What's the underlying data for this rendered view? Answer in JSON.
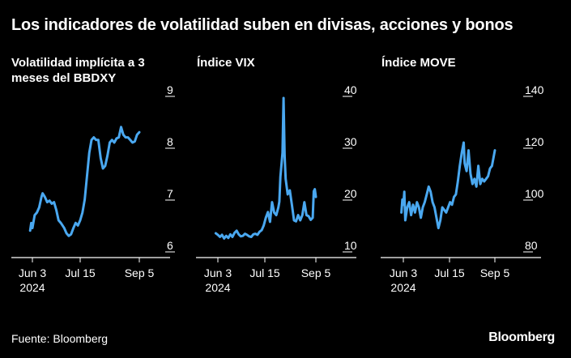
{
  "title": "Los indicadores de volatilidad suben en divisas, acciones y bonos",
  "source": "Fuente: Bloomberg",
  "brand": "Bloomberg",
  "colors": {
    "background": "#000000",
    "line": "#4aa8f0",
    "text": "#ffffff",
    "axis": "#ffffff"
  },
  "chart_data": [
    {
      "type": "line",
      "title": "Volatilidad implícita a 3 meses del BBDXY",
      "x_ticks": [
        "Jun 3\n2024",
        "Jul 15",
        "Sep 5"
      ],
      "y_ticks": [
        6,
        7,
        8,
        9
      ],
      "ylim": [
        5.75,
        9.05
      ],
      "series": [
        {
          "values": [
            [
              "2024-06-01",
              6.3
            ],
            [
              "2024-06-02",
              6.45
            ],
            [
              "2024-06-03",
              6.35
            ],
            [
              "2024-06-05",
              6.6
            ],
            [
              "2024-06-07",
              6.65
            ],
            [
              "2024-06-09",
              6.75
            ],
            [
              "2024-06-11",
              6.95
            ],
            [
              "2024-06-12",
              7.02
            ],
            [
              "2024-06-14",
              6.95
            ],
            [
              "2024-06-16",
              6.85
            ],
            [
              "2024-06-18",
              6.88
            ],
            [
              "2024-06-20",
              6.82
            ],
            [
              "2024-06-22",
              6.85
            ],
            [
              "2024-06-24",
              6.7
            ],
            [
              "2024-06-26",
              6.5
            ],
            [
              "2024-06-28",
              6.45
            ],
            [
              "2024-07-01",
              6.35
            ],
            [
              "2024-07-03",
              6.25
            ],
            [
              "2024-07-05",
              6.2
            ],
            [
              "2024-07-07",
              6.23
            ],
            [
              "2024-07-09",
              6.35
            ],
            [
              "2024-07-11",
              6.45
            ],
            [
              "2024-07-13",
              6.4
            ],
            [
              "2024-07-15",
              6.5
            ],
            [
              "2024-07-17",
              6.65
            ],
            [
              "2024-07-19",
              6.9
            ],
            [
              "2024-07-21",
              7.35
            ],
            [
              "2024-07-23",
              7.8
            ],
            [
              "2024-07-25",
              8.05
            ],
            [
              "2024-07-27",
              8.1
            ],
            [
              "2024-07-29",
              8.05
            ],
            [
              "2024-07-31",
              8.05
            ],
            [
              "2024-08-02",
              7.7
            ],
            [
              "2024-08-04",
              7.5
            ],
            [
              "2024-08-06",
              7.55
            ],
            [
              "2024-08-08",
              7.75
            ],
            [
              "2024-08-10",
              8.0
            ],
            [
              "2024-08-12",
              8.05
            ],
            [
              "2024-08-14",
              8.0
            ],
            [
              "2024-08-16",
              8.08
            ],
            [
              "2024-08-18",
              8.1
            ],
            [
              "2024-08-20",
              8.3
            ],
            [
              "2024-08-22",
              8.15
            ],
            [
              "2024-08-24",
              8.1
            ],
            [
              "2024-08-26",
              8.1
            ],
            [
              "2024-08-28",
              8.05
            ],
            [
              "2024-08-30",
              8.0
            ],
            [
              "2024-09-01",
              8.02
            ],
            [
              "2024-09-03",
              8.15
            ],
            [
              "2024-09-05",
              8.2
            ]
          ]
        }
      ]
    },
    {
      "type": "line",
      "title": "Índice VIX",
      "x_ticks": [
        "Jun 3\n2024",
        "Jul 15",
        "Sep 5"
      ],
      "y_ticks": [
        10,
        20,
        30,
        40
      ],
      "ylim": [
        9.5,
        41
      ],
      "series": [
        {
          "values": [
            [
              "2024-06-01",
              12.5
            ],
            [
              "2024-06-03",
              12.2
            ],
            [
              "2024-06-05",
              11.8
            ],
            [
              "2024-06-07",
              12.2
            ],
            [
              "2024-06-09",
              11.5
            ],
            [
              "2024-06-11",
              12.0
            ],
            [
              "2024-06-13",
              11.6
            ],
            [
              "2024-06-15",
              12.3
            ],
            [
              "2024-06-17",
              11.8
            ],
            [
              "2024-06-19",
              12.6
            ],
            [
              "2024-06-21",
              13.0
            ],
            [
              "2024-06-23",
              12.3
            ],
            [
              "2024-06-25",
              11.9
            ],
            [
              "2024-06-27",
              12.0
            ],
            [
              "2024-06-29",
              12.4
            ],
            [
              "2024-07-01",
              12.2
            ],
            [
              "2024-07-03",
              11.9
            ],
            [
              "2024-07-05",
              11.8
            ],
            [
              "2024-07-07",
              12.3
            ],
            [
              "2024-07-09",
              12.4
            ],
            [
              "2024-07-11",
              12.2
            ],
            [
              "2024-07-13",
              12.8
            ],
            [
              "2024-07-15",
              13.1
            ],
            [
              "2024-07-17",
              14.0
            ],
            [
              "2024-07-19",
              15.5
            ],
            [
              "2024-07-21",
              16.6
            ],
            [
              "2024-07-23",
              14.7
            ],
            [
              "2024-07-25",
              18.5
            ],
            [
              "2024-07-27",
              16.5
            ],
            [
              "2024-07-29",
              16.0
            ],
            [
              "2024-07-31",
              17.5
            ],
            [
              "2024-08-01",
              18.6
            ],
            [
              "2024-08-02",
              23.4
            ],
            [
              "2024-08-04",
              28.0
            ],
            [
              "2024-08-05",
              38.6
            ],
            [
              "2024-08-06",
              27.5
            ],
            [
              "2024-08-07",
              23.0
            ],
            [
              "2024-08-09",
              20.0
            ],
            [
              "2024-08-11",
              20.8
            ],
            [
              "2024-08-13",
              18.0
            ],
            [
              "2024-08-15",
              15.0
            ],
            [
              "2024-08-17",
              14.8
            ],
            [
              "2024-08-19",
              16.0
            ],
            [
              "2024-08-21",
              15.0
            ],
            [
              "2024-08-23",
              16.0
            ],
            [
              "2024-08-25",
              18.5
            ],
            [
              "2024-08-27",
              16.0
            ],
            [
              "2024-08-29",
              15.8
            ],
            [
              "2024-08-31",
              15.1
            ],
            [
              "2024-09-02",
              15.5
            ],
            [
              "2024-09-03",
              20.6
            ],
            [
              "2024-09-04",
              21.0
            ],
            [
              "2024-09-05",
              19.5
            ]
          ]
        }
      ]
    },
    {
      "type": "line",
      "title": "Índice MOVE",
      "x_ticks": [
        "Jun 3\n2024",
        "Jul 15",
        "Sep 5"
      ],
      "y_ticks": [
        80,
        100,
        120,
        140
      ],
      "ylim": [
        78,
        141
      ],
      "series": [
        {
          "values": [
            [
              "2024-06-01",
              93
            ],
            [
              "2024-06-02",
              98
            ],
            [
              "2024-06-03",
              96
            ],
            [
              "2024-06-04",
              101
            ],
            [
              "2024-06-05",
              90
            ],
            [
              "2024-06-07",
              95
            ],
            [
              "2024-06-09",
              97
            ],
            [
              "2024-06-11",
              92
            ],
            [
              "2024-06-13",
              96
            ],
            [
              "2024-06-15",
              93
            ],
            [
              "2024-06-17",
              97
            ],
            [
              "2024-06-19",
              95
            ],
            [
              "2024-06-21",
              91
            ],
            [
              "2024-06-23",
              95
            ],
            [
              "2024-06-25",
              97
            ],
            [
              "2024-06-27",
              100
            ],
            [
              "2024-06-29",
              103
            ],
            [
              "2024-07-01",
              101
            ],
            [
              "2024-07-03",
              97
            ],
            [
              "2024-07-05",
              95
            ],
            [
              "2024-07-07",
              91
            ],
            [
              "2024-07-09",
              87
            ],
            [
              "2024-07-11",
              90
            ],
            [
              "2024-07-13",
              95
            ],
            [
              "2024-07-15",
              94
            ],
            [
              "2024-07-17",
              93
            ],
            [
              "2024-07-19",
              95
            ],
            [
              "2024-07-21",
              97
            ],
            [
              "2024-07-23",
              96
            ],
            [
              "2024-07-25",
              99
            ],
            [
              "2024-07-27",
              100
            ],
            [
              "2024-07-29",
              105
            ],
            [
              "2024-07-31",
              111
            ],
            [
              "2024-08-02",
              116
            ],
            [
              "2024-08-03",
              118
            ],
            [
              "2024-08-04",
              120
            ],
            [
              "2024-08-05",
              112
            ],
            [
              "2024-08-07",
              109
            ],
            [
              "2024-08-09",
              117
            ],
            [
              "2024-08-11",
              108
            ],
            [
              "2024-08-13",
              104
            ],
            [
              "2024-08-15",
              106
            ],
            [
              "2024-08-17",
              103
            ],
            [
              "2024-08-19",
              111
            ],
            [
              "2024-08-21",
              104
            ],
            [
              "2024-08-23",
              106
            ],
            [
              "2024-08-25",
              105
            ],
            [
              "2024-08-27",
              106
            ],
            [
              "2024-08-29",
              107
            ],
            [
              "2024-08-31",
              110
            ],
            [
              "2024-09-02",
              111
            ],
            [
              "2024-09-04",
              115
            ],
            [
              "2024-09-05",
              117
            ]
          ]
        }
      ]
    }
  ]
}
